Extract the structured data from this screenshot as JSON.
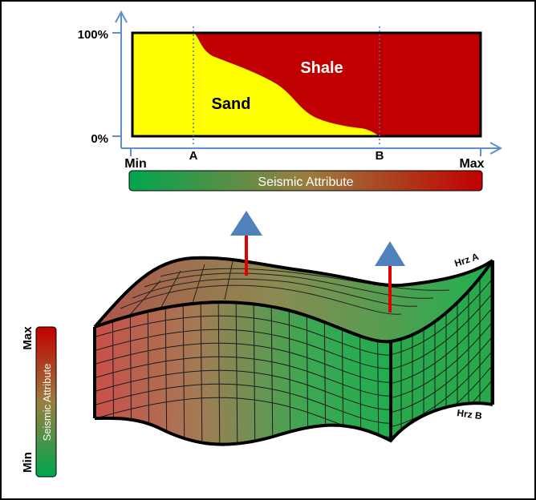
{
  "top_panel": {
    "y_axis": {
      "top_label": "100%",
      "bottom_label": "0%"
    },
    "x_axis": {
      "min_label": "Min",
      "max_label": "Max",
      "marker_a": "A",
      "marker_b": "B"
    },
    "region_labels": {
      "shale": "Shale",
      "sand": "Sand"
    },
    "colorbar_label": "Seismic Attribute",
    "colors": {
      "sand": "#ffff00",
      "shale": "#c00000",
      "axis": "#5b8fd1"
    }
  },
  "block": {
    "horizon_top_label": "Hrz A",
    "horizon_bottom_label": "Hrz B",
    "arrow_color": "#e00000",
    "arrow_head_color": "#4f81bd"
  },
  "side_colorbar": {
    "label": "Seismic Attribute",
    "max_label": "Max",
    "min_label": "Min"
  },
  "gradient_colors": {
    "low": "#00a64f",
    "high": "#c00000"
  }
}
